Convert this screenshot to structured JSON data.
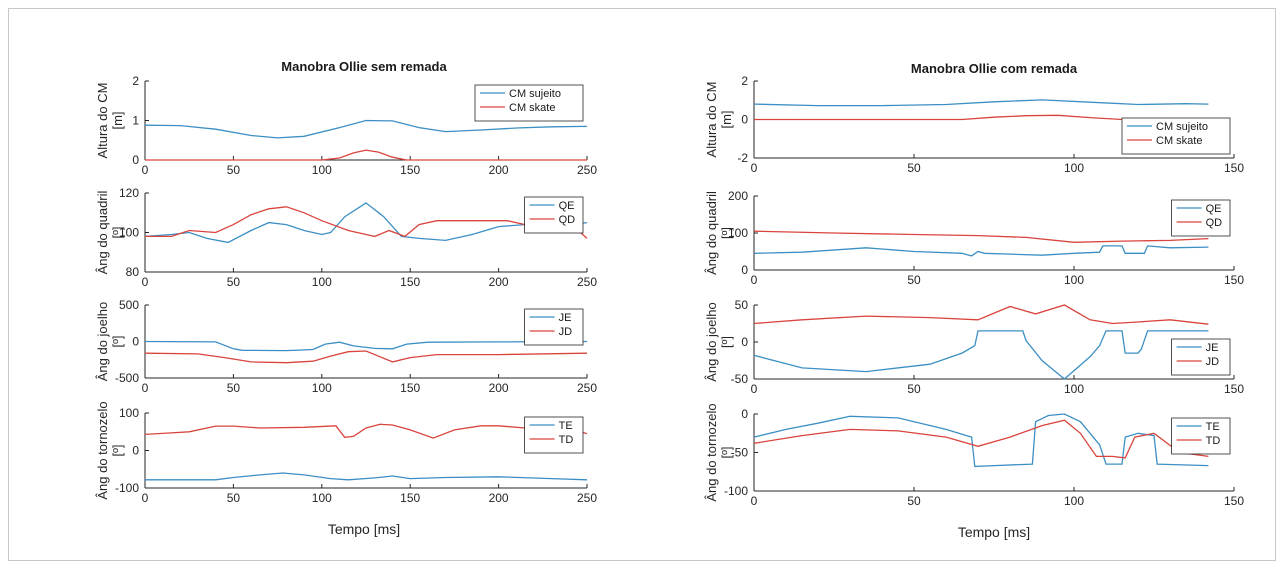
{
  "colors": {
    "blue": "#3c8fc4",
    "red": "#d9443d",
    "axis": "#262626"
  },
  "figures": [
    {
      "title": "Manobra Ollie sem remada",
      "xlabel": "Tempo [ms]"
    },
    {
      "title": "Manobra Ollie com remada",
      "xlabel": "Tempo [ms]"
    }
  ],
  "chart_data": [
    {
      "type": "line",
      "title": "Manobra Ollie sem remada",
      "xlabel": "",
      "ylabel": [
        "Altura do CM",
        "[m]"
      ],
      "xlim": [
        0,
        250
      ],
      "ylim": [
        0,
        2
      ],
      "xticks": [
        0,
        50,
        100,
        150,
        200,
        250
      ],
      "yticks": [
        0,
        1,
        2
      ],
      "legend": "top-right",
      "series": [
        {
          "name": "CM sujeito",
          "color": "blue",
          "x": [
            0,
            20,
            40,
            60,
            75,
            90,
            110,
            125,
            140,
            155,
            170,
            190,
            210,
            230,
            250
          ],
          "y": [
            0.88,
            0.87,
            0.78,
            0.62,
            0.56,
            0.6,
            0.82,
            1.0,
            0.99,
            0.82,
            0.72,
            0.76,
            0.81,
            0.84,
            0.85
          ]
        },
        {
          "name": "CM skate",
          "color": "red",
          "x": [
            0,
            100,
            110,
            118,
            125,
            132,
            140,
            148,
            250
          ],
          "y": [
            0.0,
            0.0,
            0.05,
            0.18,
            0.25,
            0.2,
            0.07,
            0.0,
            0.0
          ]
        }
      ]
    },
    {
      "type": "line",
      "title": "",
      "xlabel": "",
      "ylabel": [
        "Âng do quadril",
        "[º]"
      ],
      "xlim": [
        0,
        250
      ],
      "ylim": [
        80,
        120
      ],
      "xticks": [
        0,
        50,
        100,
        150,
        200,
        250
      ],
      "yticks": [
        80,
        100,
        120
      ],
      "legend": "top-right",
      "series": [
        {
          "name": "QE",
          "color": "blue",
          "x": [
            0,
            15,
            25,
            35,
            47,
            60,
            70,
            80,
            90,
            100,
            105,
            113,
            125,
            135,
            145,
            155,
            170,
            185,
            200,
            215,
            230,
            240,
            250
          ],
          "y": [
            98,
            99,
            100,
            97,
            95,
            101,
            105,
            104,
            101,
            99,
            100,
            108,
            115,
            108,
            98,
            97,
            96,
            99,
            103,
            104,
            105,
            104,
            105
          ]
        },
        {
          "name": "QD",
          "color": "red",
          "x": [
            0,
            15,
            25,
            40,
            50,
            60,
            70,
            80,
            90,
            100,
            115,
            125,
            130,
            138,
            147,
            155,
            165,
            185,
            205,
            220,
            235,
            245,
            250
          ],
          "y": [
            98,
            98,
            101,
            100,
            104,
            109,
            112,
            113,
            110,
            106,
            101,
            99,
            98,
            101,
            98,
            104,
            106,
            106,
            106,
            103,
            102,
            101,
            97
          ]
        }
      ]
    },
    {
      "type": "line",
      "title": "",
      "xlabel": "",
      "ylabel": [
        "Âng do joelho",
        "[º]"
      ],
      "xlim": [
        0,
        250
      ],
      "ylim": [
        -500,
        500
      ],
      "xticks": [
        0,
        50,
        100,
        150,
        200,
        250
      ],
      "yticks": [
        -500,
        0,
        500
      ],
      "legend": "top-right",
      "series": [
        {
          "name": "JE",
          "color": "blue",
          "x": [
            0,
            40,
            50,
            55,
            80,
            95,
            102,
            110,
            118,
            130,
            140,
            148,
            160,
            200,
            250
          ],
          "y": [
            0,
            -5,
            -100,
            -120,
            -125,
            -110,
            -35,
            -10,
            -60,
            -95,
            -100,
            -35,
            -10,
            -5,
            0
          ]
        },
        {
          "name": "JD",
          "color": "red",
          "x": [
            0,
            30,
            45,
            60,
            80,
            95,
            105,
            115,
            125,
            133,
            140,
            150,
            165,
            200,
            250
          ],
          "y": [
            -160,
            -170,
            -220,
            -280,
            -290,
            -270,
            -200,
            -140,
            -130,
            -210,
            -280,
            -220,
            -180,
            -180,
            -160
          ]
        }
      ]
    },
    {
      "type": "line",
      "title": "",
      "xlabel": "Tempo [ms]",
      "ylabel": [
        "Âng do tornozelo",
        "[º]"
      ],
      "xlim": [
        0,
        250
      ],
      "ylim": [
        -100,
        100
      ],
      "xticks": [
        0,
        50,
        100,
        150,
        200,
        250
      ],
      "yticks": [
        -100,
        0,
        100
      ],
      "legend": "top-right",
      "series": [
        {
          "name": "TE",
          "color": "blue",
          "x": [
            0,
            40,
            50,
            65,
            78,
            90,
            105,
            115,
            130,
            140,
            150,
            170,
            200,
            230,
            250
          ],
          "y": [
            -78,
            -78,
            -72,
            -65,
            -60,
            -65,
            -75,
            -78,
            -73,
            -68,
            -75,
            -72,
            -70,
            -75,
            -78
          ]
        },
        {
          "name": "TD",
          "color": "red",
          "x": [
            0,
            15,
            25,
            40,
            50,
            65,
            90,
            108,
            113,
            118,
            125,
            133,
            140,
            150,
            163,
            175,
            190,
            200,
            215,
            230,
            240,
            250
          ],
          "y": [
            43,
            47,
            50,
            65,
            65,
            60,
            62,
            66,
            35,
            38,
            60,
            70,
            68,
            55,
            33,
            55,
            66,
            66,
            60,
            60,
            58,
            45
          ]
        }
      ]
    },
    {
      "type": "line",
      "title": "Manobra Ollie com remada",
      "xlabel": "",
      "ylabel": [
        "Altura do CM",
        "[m]"
      ],
      "xlim": [
        0,
        150
      ],
      "ylim": [
        -2,
        2
      ],
      "xticks": [
        0,
        50,
        100,
        150
      ],
      "yticks": [
        -2,
        0,
        2
      ],
      "legend": "bottom-right",
      "series": [
        {
          "name": "CM sujeito",
          "color": "blue",
          "x": [
            0,
            20,
            40,
            60,
            75,
            90,
            105,
            120,
            135,
            142
          ],
          "y": [
            0.8,
            0.72,
            0.72,
            0.78,
            0.92,
            1.02,
            0.9,
            0.78,
            0.82,
            0.8
          ]
        },
        {
          "name": "CM skate",
          "color": "red",
          "x": [
            0,
            65,
            75,
            85,
            95,
            105,
            115,
            142
          ],
          "y": [
            0.0,
            0.0,
            0.12,
            0.2,
            0.22,
            0.1,
            0.0,
            0.0
          ]
        }
      ]
    },
    {
      "type": "line",
      "title": "",
      "xlabel": "",
      "ylabel": [
        "Âng do quadril",
        "[º]"
      ],
      "xlim": [
        0,
        150
      ],
      "ylim": [
        0,
        200
      ],
      "xticks": [
        0,
        50,
        100,
        150
      ],
      "yticks": [
        0,
        100,
        200
      ],
      "legend": "top-right",
      "series": [
        {
          "name": "QE",
          "color": "blue",
          "x": [
            0,
            15,
            35,
            50,
            65,
            68,
            70,
            72,
            90,
            100,
            108,
            109,
            115,
            116,
            122,
            123,
            130,
            142
          ],
          "y": [
            45,
            48,
            60,
            50,
            45,
            38,
            50,
            45,
            40,
            45,
            48,
            65,
            65,
            45,
            45,
            65,
            60,
            62
          ]
        },
        {
          "name": "QD",
          "color": "red",
          "x": [
            0,
            25,
            50,
            70,
            85,
            100,
            115,
            130,
            142
          ],
          "y": [
            105,
            100,
            96,
            93,
            88,
            75,
            78,
            80,
            85
          ]
        }
      ]
    },
    {
      "type": "line",
      "title": "",
      "xlabel": "",
      "ylabel": [
        "Âng do joelho",
        "[º]"
      ],
      "xlim": [
        0,
        150
      ],
      "ylim": [
        -50,
        50
      ],
      "xticks": [
        0,
        50,
        100,
        150
      ],
      "yticks": [
        -50,
        0,
        50
      ],
      "legend": "bottom-right",
      "series": [
        {
          "name": "JE",
          "color": "blue",
          "x": [
            0,
            15,
            35,
            55,
            65,
            69,
            70,
            75,
            84,
            85,
            90,
            97,
            105,
            108,
            110,
            115,
            116,
            120,
            121,
            123,
            142
          ],
          "y": [
            -18,
            -35,
            -40,
            -30,
            -15,
            -5,
            15,
            15,
            15,
            2,
            -25,
            -50,
            -20,
            -5,
            15,
            15,
            -15,
            -15,
            -10,
            15,
            15
          ]
        },
        {
          "name": "JD",
          "color": "red",
          "x": [
            0,
            15,
            35,
            55,
            70,
            80,
            88,
            97,
            105,
            112,
            120,
            130,
            142
          ],
          "y": [
            25,
            30,
            35,
            33,
            30,
            48,
            38,
            50,
            30,
            25,
            27,
            30,
            24
          ]
        }
      ]
    },
    {
      "type": "line",
      "title": "",
      "xlabel": "Tempo [ms]",
      "ylabel": [
        "Âng do tornozelo",
        "[º]"
      ],
      "xlim": [
        0,
        150
      ],
      "ylim": [
        -100,
        0
      ],
      "xticks": [
        0,
        50,
        100,
        150
      ],
      "yticks": [
        -100,
        -50,
        0
      ],
      "legend": "top-right",
      "series": [
        {
          "name": "TE",
          "color": "blue",
          "x": [
            0,
            10,
            20,
            30,
            45,
            60,
            68,
            69,
            75,
            87,
            88,
            92,
            97,
            102,
            108,
            110,
            115,
            116,
            120,
            125,
            126,
            142
          ],
          "y": [
            -30,
            -20,
            -12,
            -3,
            -5,
            -20,
            -30,
            -68,
            -67,
            -65,
            -10,
            -2,
            0,
            -10,
            -40,
            -65,
            -65,
            -30,
            -25,
            -28,
            -65,
            -67
          ]
        },
        {
          "name": "TD",
          "color": "red",
          "x": [
            0,
            15,
            30,
            45,
            60,
            70,
            80,
            90,
            97,
            102,
            107,
            112,
            116,
            119,
            125,
            133,
            142
          ],
          "y": [
            -38,
            -28,
            -20,
            -22,
            -30,
            -42,
            -30,
            -15,
            -8,
            -25,
            -55,
            -55,
            -57,
            -30,
            -25,
            -50,
            -55
          ]
        }
      ]
    }
  ]
}
